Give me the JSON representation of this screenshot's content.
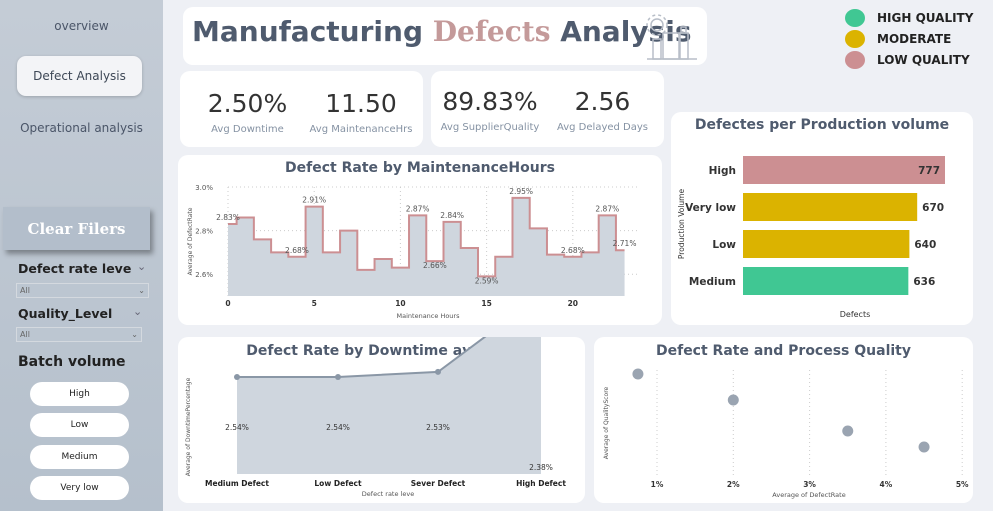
{
  "sidebar": {
    "nav": [
      "overview",
      "Defect Analysis",
      "Operational analysis"
    ],
    "clear_button": "Clear Filers",
    "filters": [
      {
        "label": "Defect rate leve",
        "value": "All"
      },
      {
        "label": "Quality_Level",
        "value": "All"
      }
    ],
    "batch_label": "Batch volume",
    "batch_options": [
      "High",
      "Low",
      "Medium",
      "Very low"
    ]
  },
  "header": {
    "title_part1": "Manufacturing ",
    "title_part2": "Defects",
    "title_part3": " Analysis",
    "icon": "factory-gear-icon"
  },
  "legend": [
    {
      "label": "HIGH QUALITY",
      "color": "#40c793"
    },
    {
      "label": "MODERATE",
      "color": "#dbb300"
    },
    {
      "label": "LOW QUALITY",
      "color": "#cc8f92"
    }
  ],
  "kpis": [
    {
      "value": "2.50%",
      "label": "Avg Downtime"
    },
    {
      "value": "11.50",
      "label": "Avg MaintenanceHrs"
    },
    {
      "value": "89.83%",
      "label": "Avg SupplierQuality"
    },
    {
      "value": "2.56",
      "label": "Avg Delayed Days"
    }
  ],
  "chart_data": [
    {
      "type": "line",
      "title": "Defect Rate by MaintenanceHours",
      "xlabel": "Maintenance Hours",
      "ylabel": "Average of DefectRate",
      "step": true,
      "x": [
        0,
        1,
        2,
        3,
        4,
        5,
        6,
        7,
        8,
        9,
        10,
        11,
        12,
        13,
        14,
        15,
        16,
        17,
        18,
        19,
        20,
        21,
        22,
        23
      ],
      "values": [
        2.83,
        2.86,
        2.76,
        2.7,
        2.68,
        2.91,
        2.7,
        2.8,
        2.62,
        2.67,
        2.63,
        2.87,
        2.66,
        2.84,
        2.72,
        2.59,
        2.68,
        2.95,
        2.81,
        2.69,
        2.68,
        2.7,
        2.87,
        2.71
      ],
      "data_labels": {
        "0": "2.83%",
        "4": "2.68%",
        "5": "2.91%",
        "11": "2.87%",
        "12": "2.66%",
        "13": "2.84%",
        "15": "2.59%",
        "17": "2.95%",
        "20": "2.68%",
        "22": "2.87%",
        "23": "2.71%"
      },
      "xticks": [
        0,
        5,
        10,
        15,
        20
      ],
      "yticks": [
        "2.6%",
        "2.8%",
        "3.0%"
      ],
      "ylim": [
        2.5,
        3.0
      ],
      "grid": true,
      "color": "#cc8f92"
    },
    {
      "type": "bar",
      "orientation": "horizontal",
      "title": "Defectes per Production volume",
      "xlabel": "Defects",
      "ylabel": "Production Volume",
      "categories": [
        "High",
        "Very low",
        "Low",
        "Medium"
      ],
      "values": [
        777,
        670,
        640,
        636
      ],
      "colors": [
        "#cc8f92",
        "#dbb300",
        "#dbb300",
        "#40c793"
      ]
    },
    {
      "type": "area",
      "title": "Defect Rate by Downtime average",
      "xlabel": "Defect rate leve",
      "ylabel": "Average of DowntimePercentage",
      "categories": [
        "Medium Defect",
        "Low Defect",
        "Sever Defect",
        "High Defect"
      ],
      "values": [
        2.54,
        2.54,
        2.53,
        2.38
      ],
      "data_labels": [
        "2.54%",
        "2.54%",
        "2.53%",
        "2.38%"
      ]
    },
    {
      "type": "scatter",
      "title": "Defect Rate and Process Quality",
      "xlabel": "Average of DefectRate",
      "ylabel": "Average of QualityScore",
      "x": [
        0.75,
        2.0,
        3.5,
        4.5
      ],
      "y_rank": [
        4,
        3,
        2,
        1
      ],
      "xticks": [
        "1%",
        "2%",
        "3%",
        "4%",
        "5%"
      ],
      "xlim": [
        0.5,
        5.2
      ]
    }
  ]
}
